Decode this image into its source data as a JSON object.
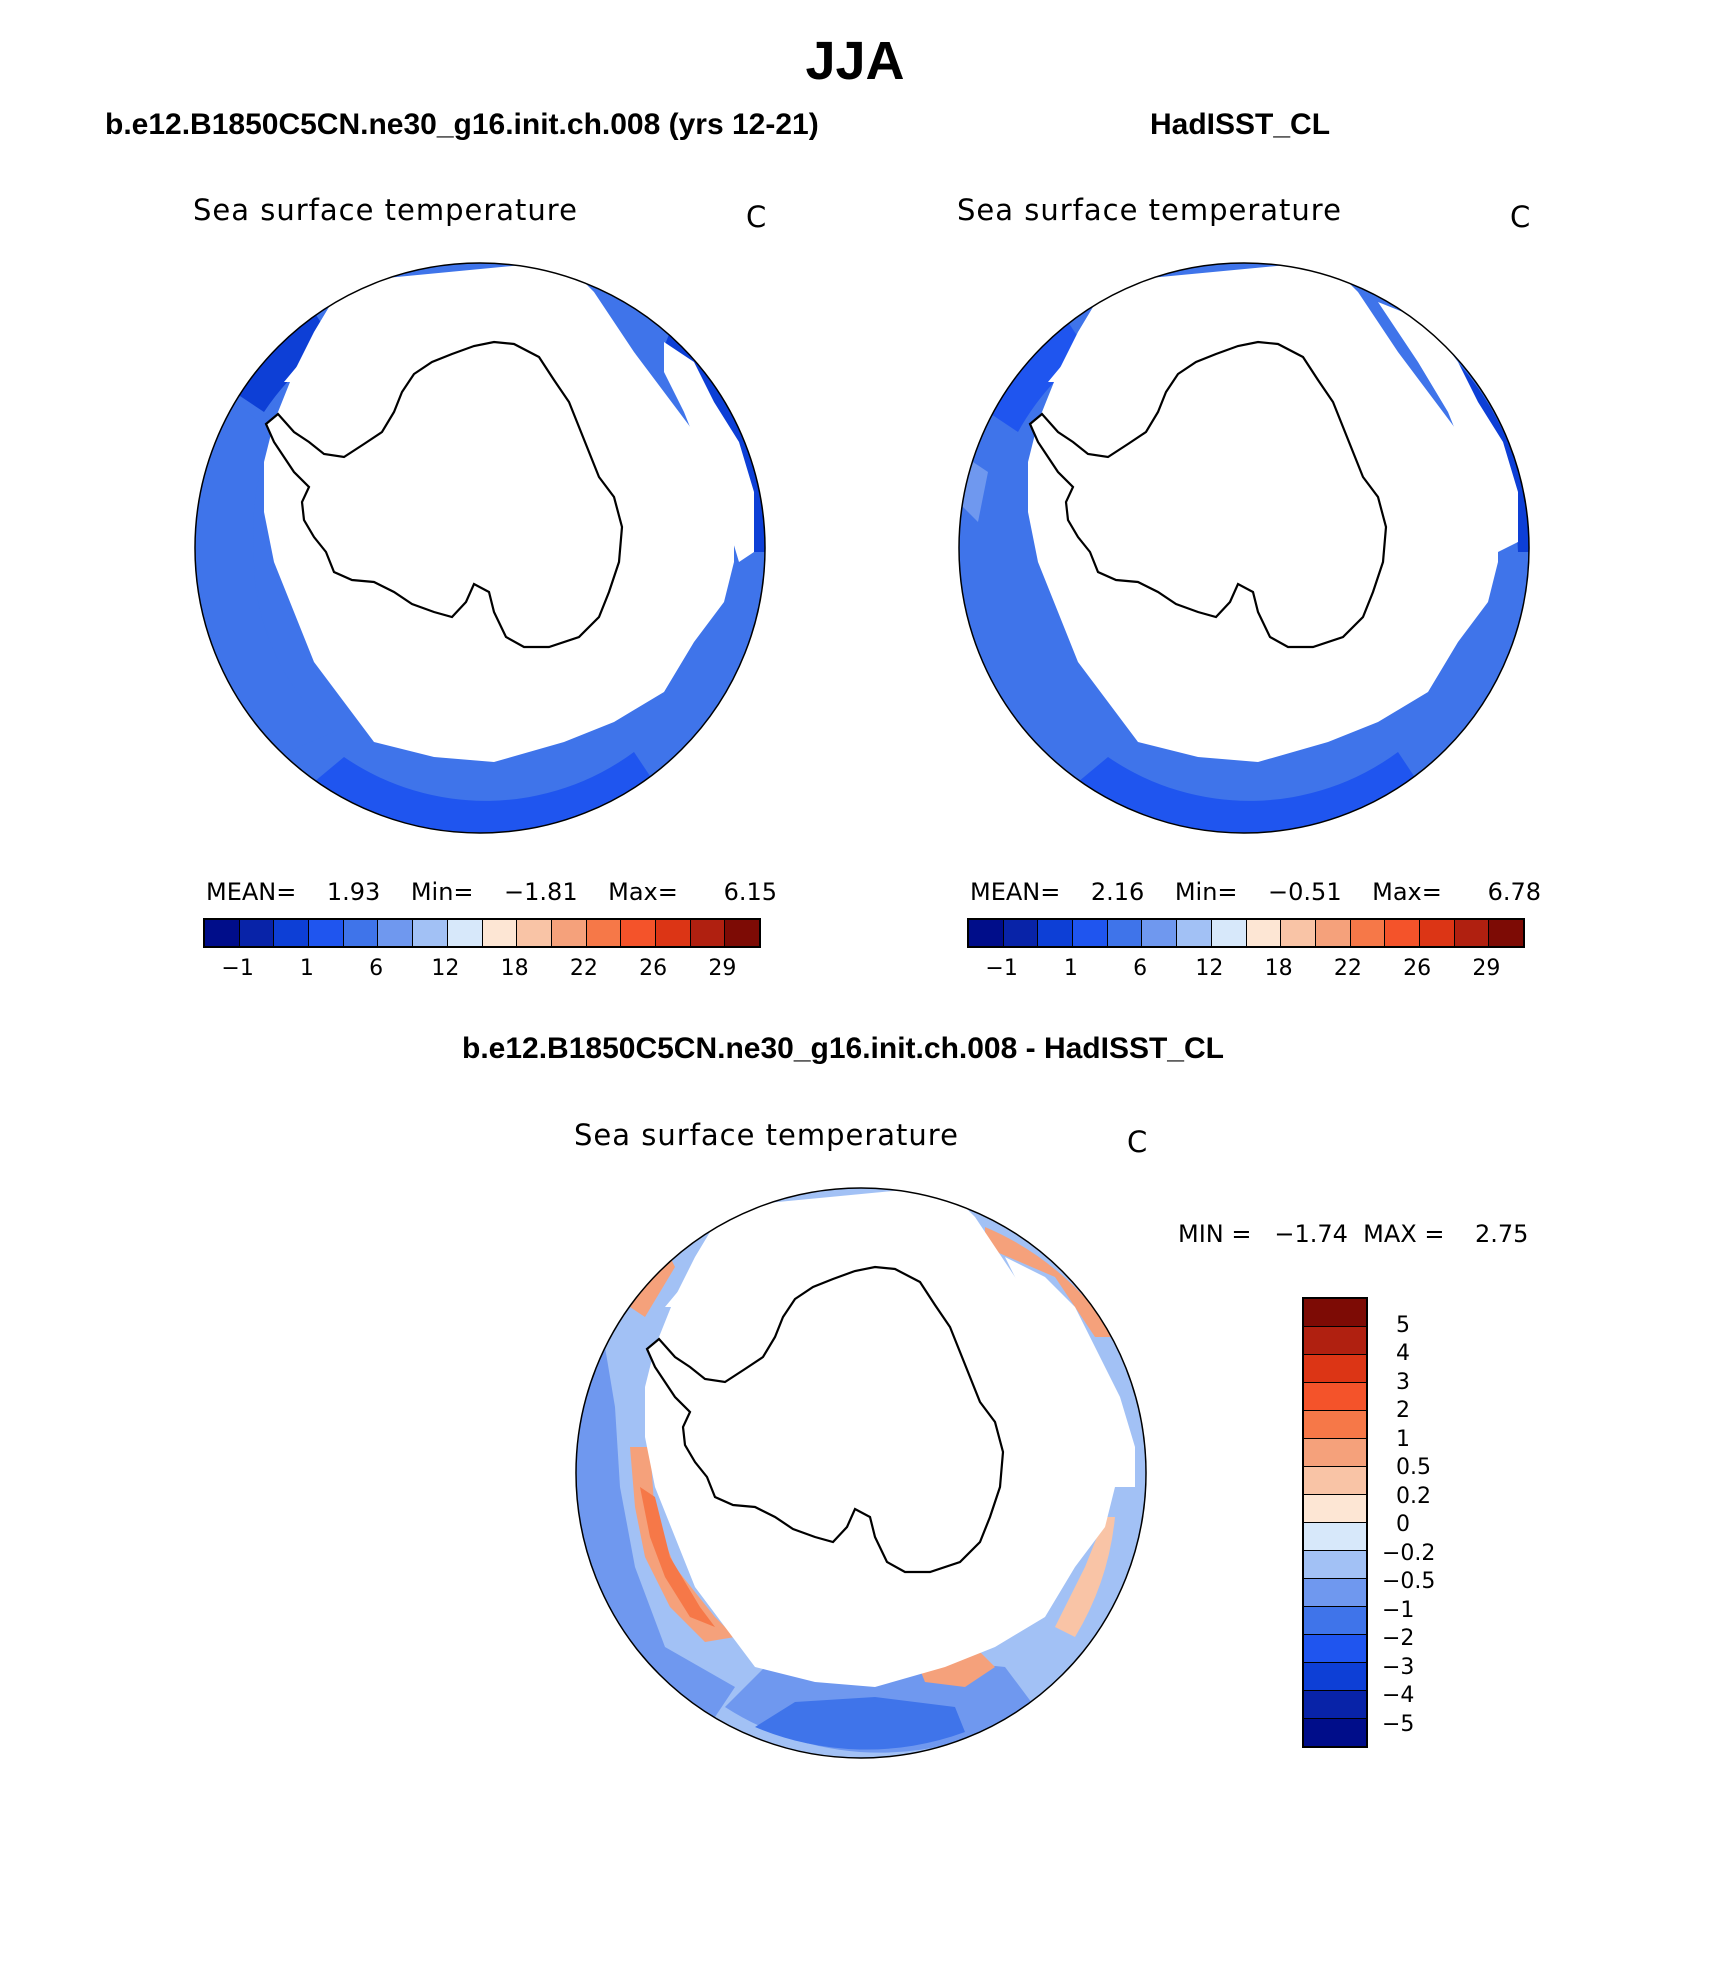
{
  "title": "JJA",
  "panels": [
    {
      "case": "b.e12.B1850C5CN.ne30_g16.init.ch.008 (yrs 12-21)",
      "variable": "Sea surface temperature",
      "units": "C",
      "stats": {
        "mean_label": "MEAN=",
        "mean": "1.93",
        "min_label": "Min=",
        "min": "−1.81",
        "max_label": "Max=",
        "max": "6.15"
      }
    },
    {
      "case": "HadISST_CL",
      "variable": "Sea surface temperature",
      "units": "C",
      "stats": {
        "mean_label": "MEAN=",
        "mean": "2.16",
        "min_label": "Min=",
        "min": "−0.51",
        "max_label": "Max=",
        "max": "6.78"
      }
    }
  ],
  "sst_colorbar": {
    "colors": [
      "#000d8a",
      "#0823a8",
      "#0d3fd6",
      "#1f55ef",
      "#3f74ea",
      "#6f98ef",
      "#a2c1f5",
      "#d7e8fa",
      "#fde6d4",
      "#f9c4a6",
      "#f5a17b",
      "#f67848",
      "#f4532a",
      "#dc3515",
      "#b02010",
      "#7d0b05"
    ],
    "tick_labels": [
      "−1",
      "1",
      "6",
      "12",
      "18",
      "22",
      "26",
      "29"
    ]
  },
  "difference": {
    "title": "b.e12.B1850C5CN.ne30_g16.init.ch.008 - HadISST_CL",
    "variable": "Sea surface temperature",
    "units": "C",
    "minmax_text": "MIN =   −1.74  MAX =    2.75",
    "colorbar": {
      "colors": [
        "#7d0b05",
        "#b02010",
        "#dc3515",
        "#f4532a",
        "#f67848",
        "#f5a17b",
        "#f9c4a6",
        "#fde6d4",
        "#d7e8fa",
        "#a2c1f5",
        "#6f98ef",
        "#3f74ea",
        "#1f55ef",
        "#0d3fd6",
        "#0823a8",
        "#000d8a"
      ],
      "tick_labels": [
        "5",
        "4",
        "3",
        "2",
        "1",
        "0.5",
        "0.2",
        "0",
        "−0.2",
        "−0.5",
        "−1",
        "−2",
        "−3",
        "−4",
        "−5"
      ]
    }
  },
  "map_colors": {
    "ocean_mid": "#3f74ea",
    "ocean_deep": "#1f55ef",
    "ocean_dark": "#0d3fd6",
    "anom_warm": "#f5a17b",
    "anom_hot": "#f67848",
    "anom_cool": "#6f98ef",
    "anom_cold": "#3f74ea"
  }
}
